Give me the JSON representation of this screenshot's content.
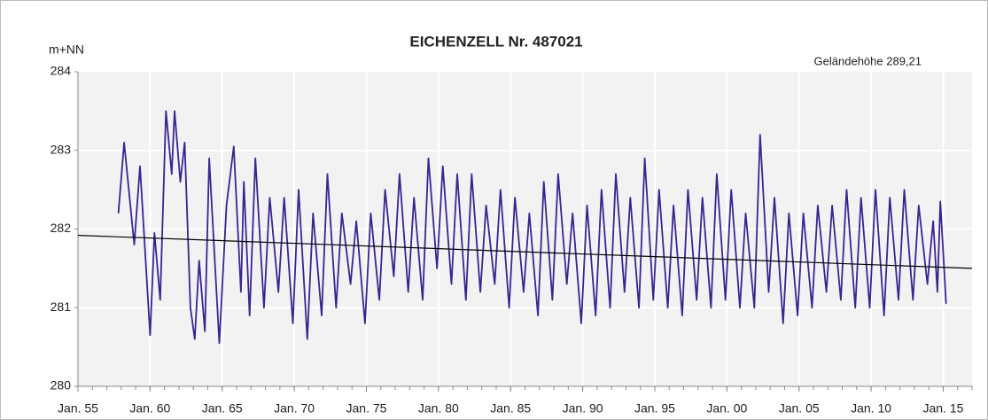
{
  "chart_data": {
    "type": "line",
    "title": "EICHENZELL  Nr. 487021",
    "y_label": "m+NN",
    "annotation": "Geländehöhe 289,21",
    "annotation_color": "#2e8b2e",
    "ylim": [
      280,
      284
    ],
    "yticks": [
      280,
      281,
      282,
      283,
      284
    ],
    "xlim": [
      1955,
      2017
    ],
    "xticks": [
      {
        "value": 1955,
        "label": "Jan. 55"
      },
      {
        "value": 1960,
        "label": "Jan. 60"
      },
      {
        "value": 1965,
        "label": "Jan. 65"
      },
      {
        "value": 1970,
        "label": "Jan. 70"
      },
      {
        "value": 1975,
        "label": "Jan. 75"
      },
      {
        "value": 1980,
        "label": "Jan. 80"
      },
      {
        "value": 1985,
        "label": "Jan. 85"
      },
      {
        "value": 1990,
        "label": "Jan. 90"
      },
      {
        "value": 1995,
        "label": "Jan. 95"
      },
      {
        "value": 2000,
        "label": "Jan. 00"
      },
      {
        "value": 2005,
        "label": "Jan. 05"
      },
      {
        "value": 2010,
        "label": "Jan. 10"
      },
      {
        "value": 2015,
        "label": "Jan. 15"
      }
    ],
    "grid": true,
    "x": [
      1957.8,
      1958.2,
      1958.9,
      1959.3,
      1960.0,
      1960.3,
      1960.7,
      1961.1,
      1961.5,
      1961.7,
      1962.1,
      1962.4,
      1962.8,
      1963.1,
      1963.4,
      1963.8,
      1964.1,
      1964.8,
      1965.3,
      1965.8,
      1966.3,
      1966.5,
      1966.9,
      1967.3,
      1967.9,
      1968.3,
      1968.9,
      1969.3,
      1969.9,
      1970.3,
      1970.9,
      1971.3,
      1971.9,
      1972.3,
      1972.9,
      1973.3,
      1973.9,
      1974.3,
      1974.9,
      1975.3,
      1975.9,
      1976.3,
      1976.9,
      1977.3,
      1977.9,
      1978.3,
      1978.9,
      1979.3,
      1979.9,
      1980.3,
      1980.9,
      1981.3,
      1981.9,
      1982.3,
      1982.9,
      1983.3,
      1983.9,
      1984.3,
      1984.9,
      1985.3,
      1985.9,
      1986.3,
      1986.9,
      1987.3,
      1987.9,
      1988.3,
      1988.9,
      1989.3,
      1989.9,
      1990.3,
      1990.9,
      1991.3,
      1991.9,
      1992.3,
      1992.9,
      1993.3,
      1993.9,
      1994.3,
      1994.9,
      1995.3,
      1995.9,
      1996.3,
      1996.9,
      1997.3,
      1997.9,
      1998.3,
      1998.9,
      1999.3,
      1999.9,
      2000.3,
      2000.9,
      2001.3,
      2001.9,
      2002.3,
      2002.9,
      2003.3,
      2003.9,
      2004.3,
      2004.9,
      2005.3,
      2005.9,
      2006.3,
      2006.9,
      2007.3,
      2007.9,
      2008.3,
      2008.9,
      2009.3,
      2009.9,
      2010.3,
      2010.9,
      2011.3,
      2011.9,
      2012.3,
      2012.9,
      2013.3,
      2013.9,
      2014.3,
      2014.6,
      2014.8,
      2015.2
    ],
    "series": [
      {
        "color": "#3b2390",
        "values": [
          282.2,
          283.1,
          281.8,
          282.8,
          280.65,
          281.95,
          281.1,
          283.5,
          282.7,
          283.5,
          282.6,
          283.1,
          281.0,
          280.6,
          281.6,
          280.7,
          282.9,
          280.55,
          282.3,
          283.05,
          281.2,
          282.6,
          280.9,
          282.9,
          281.0,
          282.4,
          281.2,
          282.4,
          280.8,
          282.5,
          280.6,
          282.2,
          280.9,
          282.7,
          281.0,
          282.2,
          281.3,
          282.1,
          280.8,
          282.2,
          281.1,
          282.5,
          281.4,
          282.7,
          281.2,
          282.4,
          281.1,
          282.9,
          281.5,
          282.8,
          281.3,
          282.7,
          281.1,
          282.7,
          281.2,
          282.3,
          281.3,
          282.5,
          281.0,
          282.4,
          281.2,
          282.2,
          280.9,
          282.6,
          281.1,
          282.7,
          281.3,
          282.2,
          280.8,
          282.3,
          280.9,
          282.5,
          281.0,
          282.7,
          281.2,
          282.4,
          281.0,
          282.9,
          281.1,
          282.5,
          281.0,
          282.3,
          280.9,
          282.5,
          281.1,
          282.4,
          281.0,
          282.7,
          281.1,
          282.5,
          281.0,
          282.2,
          281.0,
          283.2,
          281.2,
          282.4,
          280.8,
          282.2,
          280.9,
          282.2,
          281.0,
          282.3,
          281.2,
          282.3,
          281.1,
          282.5,
          281.0,
          282.4,
          281.0,
          282.5,
          280.9,
          282.4,
          281.1,
          282.5,
          281.1,
          282.3,
          281.3,
          282.1,
          281.2,
          282.35,
          281.05
        ]
      }
    ],
    "trend_line": {
      "color": "#000000",
      "x": [
        1955,
        2017
      ],
      "values": [
        281.92,
        281.5
      ]
    }
  }
}
